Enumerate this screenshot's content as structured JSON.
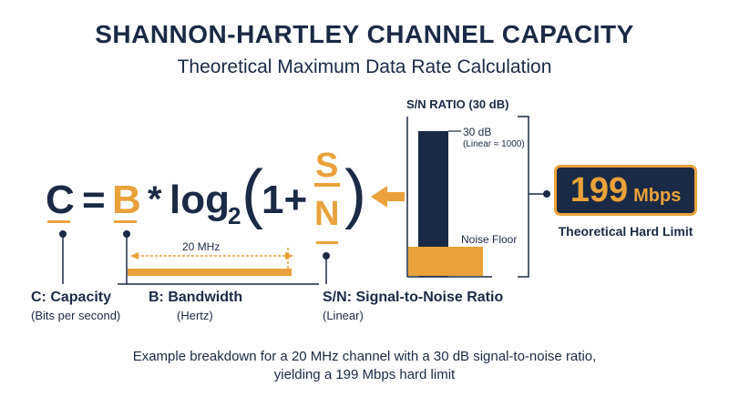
{
  "header": {
    "title": "SHANNON-HARTLEY CHANNEL CAPACITY",
    "subtitle": "Theoretical Maximum Data Rate Calculation"
  },
  "formula": {
    "capacity_symbol": "C",
    "equals": "=",
    "bandwidth_symbol": "B",
    "multiply": "*",
    "log": "log",
    "log_base": "2",
    "open_paren": "(",
    "one_plus": "1+",
    "signal": "S",
    "noise": "N",
    "close_paren": ")"
  },
  "labels": {
    "capacity": {
      "name": "C: Capacity",
      "unit": "(Bits per second)"
    },
    "bandwidth": {
      "name": "B: Bandwidth",
      "unit": "(Hertz)",
      "value": "20 MHz"
    },
    "snr": {
      "name": "S/N: Signal-to-Noise Ratio",
      "unit": "(Linear)"
    }
  },
  "snr_chart": {
    "title": "S/N RATIO (30 dB)",
    "signal_label": "30 dB",
    "signal_sub": "(Linear ≈ 1000)",
    "noise_label": "Noise Floor"
  },
  "result": {
    "value": "199",
    "unit": "Mbps",
    "caption": "Theoretical Hard Limit"
  },
  "footnote": {
    "line1": "Example breakdown for a 20 MHz channel with a 30 dB signal-to-noise ratio,",
    "line2": "yielding a 199 Mbps hard limit"
  },
  "colors": {
    "navy": "#1b2a44",
    "orange": "#e9a23b"
  }
}
